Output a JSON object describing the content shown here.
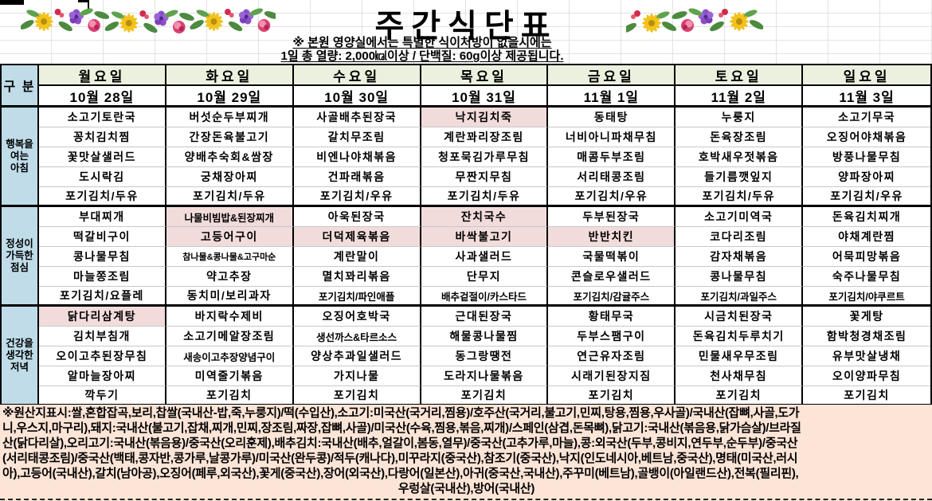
{
  "title": "주간식단표",
  "notice": {
    "line1": "※ 본원 영양실에서는 특별한 식이처방이 없을시에는",
    "line2": "1일 총 열량: 2,000㎉이상 / 단백질: 60g이상 제공됩니다."
  },
  "table": {
    "corner_label": "구 분",
    "days": [
      {
        "weekday": "월요일",
        "date": "10월 28일"
      },
      {
        "weekday": "화요일",
        "date": "10월 29일"
      },
      {
        "weekday": "수요일",
        "date": "10월 30일"
      },
      {
        "weekday": "목요일",
        "date": "10월 31일"
      },
      {
        "weekday": "금요일",
        "date": "11월 1일"
      },
      {
        "weekday": "토요일",
        "date": "11월 2일"
      },
      {
        "weekday": "일요일",
        "date": "11월 3일"
      }
    ],
    "sections": [
      {
        "id": "breakfast",
        "label_lines": [
          "행복을",
          "여는",
          "아침"
        ],
        "menus": [
          [
            "소고기토란국",
            "꽁치김치찜",
            "꽃맛살샐러드",
            "도시락김",
            "포기김치/두유"
          ],
          [
            "버섯순두부찌개",
            "간장돈육불고기",
            "양배추숙회&쌈장",
            "궁채장아찌",
            "포기김치/두유"
          ],
          [
            "사골배추된장국",
            "갈치무조림",
            "비엔나야채볶음",
            "건파래볶음",
            "포기김치/우유"
          ],
          [
            "낙지김치죽",
            "계란꽈리장조림",
            "청포묵김가루무침",
            "무짠지무침",
            "포기김치/두유"
          ],
          [
            "동태탕",
            "너비아니파채무침",
            "매콤두부조림",
            "서리태콩조림",
            "포기김치/우유"
          ],
          [
            "누룽지",
            "돈육장조림",
            "호박새우젓볶음",
            "들기름깻잎지",
            "포기김치/두유"
          ],
          [
            "소고기무국",
            "오징어야채볶음",
            "방풍나물무침",
            "양파장아찌",
            "포기김치/우유"
          ]
        ],
        "highlights": [
          [
            3,
            0
          ]
        ]
      },
      {
        "id": "lunch",
        "label_lines": [
          "정성이",
          "가득한",
          "점심"
        ],
        "menus": [
          [
            "부대찌개",
            "떡갈비구이",
            "콩나물무침",
            "마늘쫑조림",
            "포기김치/요플레"
          ],
          [
            "나물비빔밥&된장찌개",
            "고등어구이",
            "참나물&콩나물&고구마순",
            "약고추장",
            "동치미/보리과자"
          ],
          [
            "아욱된장국",
            "더덕제육볶음",
            "계란말이",
            "멸치꽈리볶음",
            "포기김치/파인애플"
          ],
          [
            "잔치국수",
            "바싹불고기",
            "사과샐러드",
            "단무지",
            "배추겉절이/카스타드"
          ],
          [
            "두부된장국",
            "반반치킨",
            "국물떡볶이",
            "콘슬로우샐러드",
            "포기김치/감귤주스"
          ],
          [
            "소고기미역국",
            "코다리조림",
            "감자채볶음",
            "콩나물무침",
            "포기김치/과일주스"
          ],
          [
            "돈육김치찌개",
            "야채계란찜",
            "어묵피망볶음",
            "숙주나물무침",
            "포기김치/야쿠르트"
          ]
        ],
        "highlights": [
          [
            1,
            0
          ],
          [
            1,
            1
          ],
          [
            2,
            1
          ],
          [
            3,
            0
          ],
          [
            3,
            1
          ],
          [
            4,
            1
          ]
        ]
      },
      {
        "id": "dinner",
        "label_lines": [
          "건강을",
          "생각한",
          "저녁"
        ],
        "menus": [
          [
            "닭다리삼계탕",
            "김치부침개",
            "오이고추된장무침",
            "알마늘장아찌",
            "깍두기"
          ],
          [
            "바지락수제비",
            "소고기메알장조림",
            "새송이고추장양념구이",
            "미역줄기볶음",
            "포기김치"
          ],
          [
            "오징어호박국",
            "생선까스&타르소스",
            "양상추과일샐러드",
            "가지나물",
            "포기김치"
          ],
          [
            "근대된장국",
            "해물콩나물찜",
            "동그랑땡전",
            "도라지나물볶음",
            "포기김치"
          ],
          [
            "황태무국",
            "두부스팸구이",
            "연근유자조림",
            "시래기된장지짐",
            "포기김치"
          ],
          [
            "시금치된장국",
            "돈육김치두루치기",
            "민물새우무조림",
            "천사채무침",
            "포기김치"
          ],
          [
            "꽃게탕",
            "함박청경채조림",
            "유부맛살냉채",
            "오이양파무침",
            "포기김치"
          ]
        ],
        "highlights": [
          [
            0,
            0
          ]
        ]
      }
    ]
  },
  "footer": {
    "origin_lines": [
      "※원산지표시:쌀,혼합잡곡,보리,찹쌀(국내산-밥,죽,누룽지)/떡(수입산),소고기:미국산(국거리,찜용)/호주산(국거리,불고기,민찌,탕용,찜용,우사골)/국내산(잡뼈,사골,도가",
      "니,우스지,마구리),돼지:국내산(불고기,잡채,찌개,민찌,장조림,짜장,잡뼈,사골)/미국산(수육,찜용,볶음,찌개)/스페인(삼겹,돈목뼈),닭고기:국내산(볶음용,닭가슴살)/브라질",
      "산(닭다리살),오리고기:국내산(볶음용)/중국산(오리훈제),배추김치:국내산(배추,얼갈이,봄동,열무)/중국산(고추가루,마늘),콩:외국산(두부,콩비지,연두부,순두부)/중국산",
      "(서리태콩조림)/중국산(백태,콩자반,콩가루,날콩가루)/미국산(완두콩)/적두(캐나다),미꾸라지(중국산),참조기(중국산),낙지(인도네시아,베트남,중국산),명태(미국산,러시",
      "아),고등어(국내산),갈치(남아공),오징어(페루,외국산),꽃게(중국산),장어(외국산),다랑어(일본산),아귀(중국산,국내산),주꾸미(베트남),골뱅이(아일랜드산),전복(필리핀),",
      "우렁살(국내산),방어(국내산)"
    ]
  },
  "colors": {
    "header_green": "#ebf1de",
    "label_blue": "#bfdce8",
    "highlight_pink": "#f2dcdb",
    "footer_peach": "#fce4d6",
    "border_black": "#000000"
  }
}
